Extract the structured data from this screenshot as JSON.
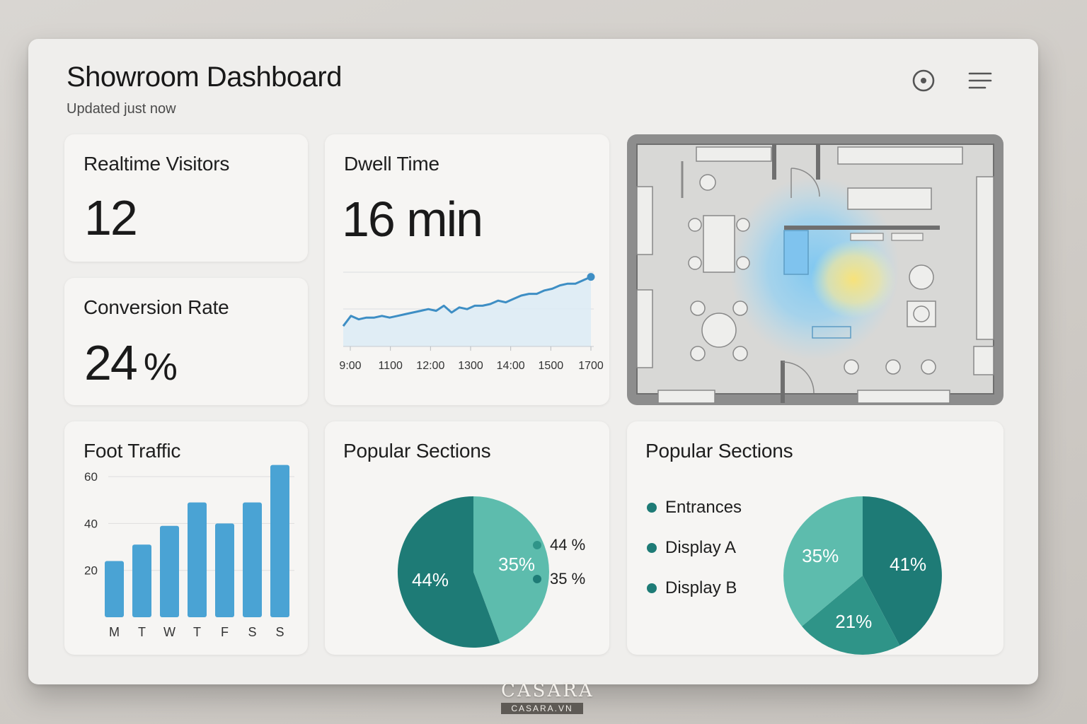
{
  "header": {
    "title": "Showroom Dashboard",
    "subtitle": "Updated just now",
    "icons": [
      "target-icon",
      "menu-icon"
    ]
  },
  "cards": {
    "visitors": {
      "title": "Realtime Visitors",
      "value": "12"
    },
    "conversion": {
      "title": "Conversion Rate",
      "value": "24",
      "unit": "%"
    },
    "dwell": {
      "title": "Dwell Time",
      "value": "16 min"
    },
    "map": {
      "label": ""
    },
    "foot": {
      "title": "Foot Traffic"
    },
    "popular1": {
      "title": "Popular Sections",
      "legend": [
        "44 %",
        "35 %"
      ]
    },
    "popular2": {
      "title": "Popular Sections",
      "legend": [
        "Entrances",
        "Display A",
        "Display B"
      ]
    }
  },
  "colors": {
    "teal_dark": "#1e7b76",
    "teal_mid": "#2f9488",
    "teal_light": "#5dbcad",
    "bar_blue": "#4aa3d4",
    "line_blue": "#3e8ec4"
  },
  "chart_data": [
    {
      "type": "line",
      "title": "Dwell Time",
      "x_ticks": [
        "9:00",
        "1100",
        "12:00",
        "1300",
        "14:00",
        "1500",
        "1700"
      ],
      "x": [
        0,
        0.5,
        1,
        1.5,
        2,
        2.5,
        3,
        3.5,
        4,
        4.5,
        5,
        5.5,
        6,
        6.5,
        7,
        7.5,
        8,
        8.5,
        9,
        9.5,
        10,
        10.5,
        11,
        11.5,
        12,
        12.5,
        13,
        13.5,
        14,
        14.5,
        15,
        15.5,
        16
      ],
      "y": [
        12,
        18,
        16,
        17,
        17,
        18,
        17,
        18,
        19,
        20,
        21,
        22,
        21,
        24,
        20,
        23,
        22,
        24,
        24,
        25,
        27,
        26,
        28,
        30,
        31,
        31,
        33,
        34,
        36,
        37,
        37,
        39,
        41
      ],
      "ylim": [
        0,
        50
      ],
      "grid": true,
      "y_labels_shown": false
    },
    {
      "type": "bar",
      "title": "Foot Traffic",
      "categories": [
        "M",
        "T",
        "W",
        "T",
        "F",
        "S",
        "S"
      ],
      "values": [
        24,
        31,
        39,
        49,
        40,
        49,
        65
      ],
      "y_ticks": [
        20,
        40,
        60
      ],
      "ylim": [
        0,
        70
      ]
    },
    {
      "type": "pie",
      "title": "Popular Sections",
      "slices": [
        {
          "label": "35%",
          "value": 35,
          "color": "#5dbcad"
        },
        {
          "label": "44%",
          "value": 44,
          "color": "#1e7b76"
        }
      ],
      "legend": [
        "44 %",
        "35 %"
      ],
      "legend_position": "right"
    },
    {
      "type": "pie",
      "title": "Popular Sections",
      "slices": [
        {
          "label": "41%",
          "value": 41,
          "color": "#1e7b76"
        },
        {
          "label": "21%",
          "value": 21,
          "color": "#2f9488"
        },
        {
          "label": "35%",
          "value": 35,
          "color": "#5dbcad"
        }
      ],
      "legend": [
        "Entrances",
        "Display A",
        "Display B"
      ],
      "legend_position": "left"
    }
  ],
  "watermark": {
    "logo": "CASARA",
    "domain": "CASARA.VN"
  }
}
